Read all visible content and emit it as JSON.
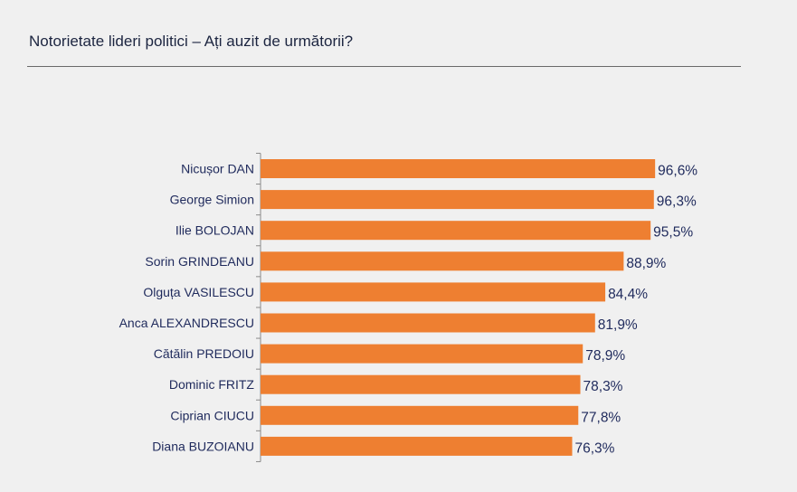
{
  "header": {
    "title": "Notorietate lideri politici – Ați auzit de următorii?"
  },
  "colors": {
    "bar": "#ee7f31",
    "text": "#1f2a5c",
    "axis": "#8a8a8a"
  },
  "chart_data": {
    "type": "bar",
    "orientation": "horizontal",
    "title": "Notorietate lideri politici – Ați auzit de următorii?",
    "categories": [
      "Nicușor DAN",
      "George Simion",
      "Ilie BOLOJAN",
      "Sorin GRINDEANU",
      "Olguța VASILESCU",
      "Anca ALEXANDRESCU",
      "Cătălin PREDOIU",
      "Dominic FRITZ",
      "Ciprian CIUCU",
      "Diana BUZOIANU"
    ],
    "values": [
      96.6,
      96.3,
      95.5,
      88.9,
      84.4,
      81.9,
      78.9,
      78.3,
      77.8,
      76.3
    ],
    "value_labels": [
      "96,6%",
      "96,3%",
      "95,5%",
      "88,9%",
      "84,4%",
      "81,9%",
      "78,9%",
      "78,3%",
      "77,8%",
      "76,3%"
    ],
    "unit": "%",
    "xlim": [
      0,
      100
    ],
    "xlabel": "",
    "ylabel": "",
    "grid": false,
    "legend": "none"
  }
}
